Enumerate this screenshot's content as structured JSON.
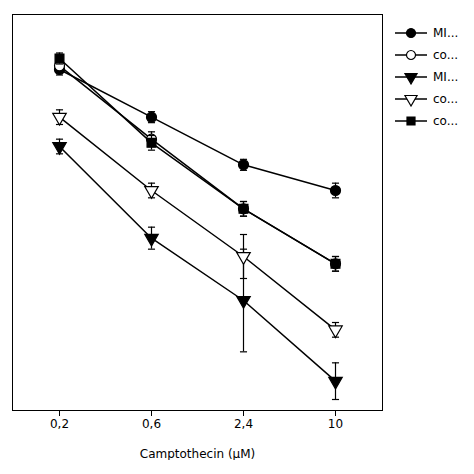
{
  "chart_data": {
    "type": "line",
    "xlabel": "Camptothecin (μM)",
    "categories": [
      "0,2",
      "0,6",
      "2,4",
      "10"
    ],
    "series": [
      {
        "name": "MI...",
        "color": "black",
        "marker": "circle-filled",
        "values": [
          93,
          80,
          67,
          60
        ],
        "yerr": [
          1.5,
          1.5,
          1.5,
          2
        ]
      },
      {
        "name": "co...",
        "color": "black",
        "marker": "circle-open",
        "values": [
          94,
          74,
          55,
          40
        ],
        "yerr": [
          1.5,
          2,
          2,
          2
        ]
      },
      {
        "name": "MI...",
        "color": "black",
        "marker": "triangle-down-filled",
        "values": [
          72,
          47,
          30,
          8
        ],
        "yerr": [
          2,
          3,
          14,
          5
        ]
      },
      {
        "name": "co...",
        "color": "black",
        "marker": "triangle-down-open",
        "values": [
          80,
          60,
          42,
          22
        ],
        "yerr": [
          2,
          2,
          6,
          2
        ]
      },
      {
        "name": "co...",
        "color": "black",
        "marker": "square-filled",
        "values": [
          96,
          73,
          55,
          40
        ],
        "yerr": [
          1.5,
          2,
          2,
          2
        ]
      }
    ],
    "ylim": [
      0,
      108
    ],
    "yticks": [],
    "tick_labels": "x",
    "grid": false,
    "legend": "right"
  }
}
